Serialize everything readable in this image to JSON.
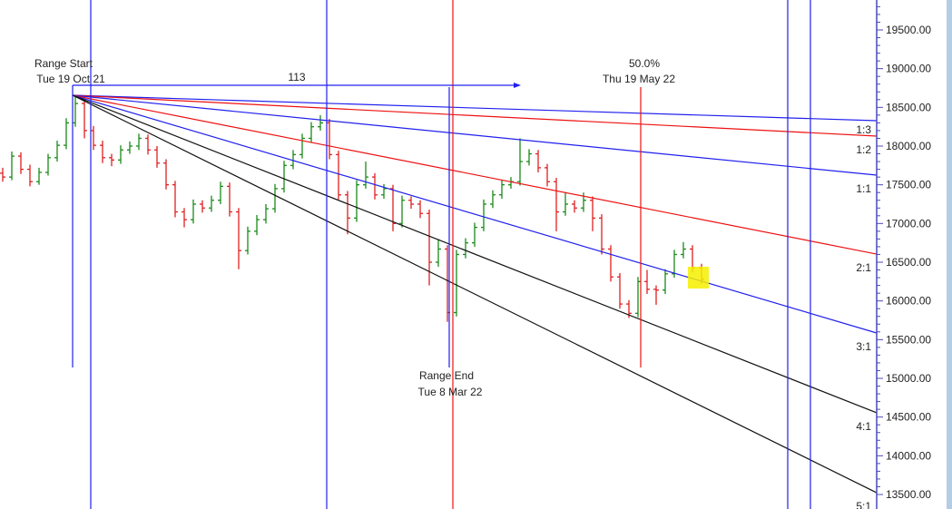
{
  "chart_data": {
    "type": "ohlc",
    "ylim": [
      13450,
      19900
    ],
    "y_ticks": [
      "19500.00",
      "19000.00",
      "18500.00",
      "18000.00",
      "17500.00",
      "17000.00",
      "16500.00",
      "16000.00",
      "15500.00",
      "15000.00",
      "14500.00",
      "14000.00",
      "13500.00"
    ],
    "y_tick_values": [
      19500,
      19000,
      18500,
      18000,
      17500,
      17000,
      16500,
      16000,
      15500,
      15000,
      14500,
      14000,
      13500
    ],
    "colors": {
      "up": "#1a8a1a",
      "down": "#e02020",
      "blue": "#2020ee",
      "red": "#ee1010",
      "black": "#111111",
      "highlight": "#f5f000"
    },
    "bars": [
      [
        17650,
        17720,
        17540,
        17600
      ],
      [
        17600,
        17930,
        17560,
        17870
      ],
      [
        17870,
        17920,
        17640,
        17700
      ],
      [
        17700,
        17760,
        17480,
        17540
      ],
      [
        17540,
        17720,
        17500,
        17660
      ],
      [
        17660,
        17900,
        17620,
        17850
      ],
      [
        17850,
        18070,
        17800,
        18010
      ],
      [
        18010,
        18360,
        17960,
        18300
      ],
      [
        18300,
        18660,
        18250,
        18550
      ],
      [
        18550,
        18600,
        18100,
        18200
      ],
      [
        18200,
        18260,
        17950,
        18010
      ],
      [
        18010,
        18070,
        17780,
        17850
      ],
      [
        17850,
        17900,
        17740,
        17820
      ],
      [
        17820,
        18010,
        17770,
        17950
      ],
      [
        17950,
        18060,
        17900,
        18000
      ],
      [
        18000,
        18160,
        17950,
        18100
      ],
      [
        18100,
        18150,
        17890,
        17950
      ],
      [
        17950,
        18000,
        17720,
        17780
      ],
      [
        17780,
        17830,
        17440,
        17500
      ],
      [
        17500,
        17550,
        17080,
        17150
      ],
      [
        17150,
        17200,
        16950,
        17050
      ],
      [
        17050,
        17310,
        17000,
        17250
      ],
      [
        17250,
        17300,
        17140,
        17200
      ],
      [
        17200,
        17360,
        17150,
        17300
      ],
      [
        17300,
        17540,
        17250,
        17480
      ],
      [
        17480,
        17530,
        17090,
        17150
      ],
      [
        17150,
        17200,
        16410,
        16650
      ],
      [
        16650,
        16960,
        16600,
        16900
      ],
      [
        16900,
        17110,
        16850,
        17050
      ],
      [
        17050,
        17250,
        17000,
        17190
      ],
      [
        17190,
        17510,
        17140,
        17450
      ],
      [
        17450,
        17810,
        17400,
        17750
      ],
      [
        17750,
        17950,
        17700,
        17890
      ],
      [
        17890,
        18160,
        17840,
        18100
      ],
      [
        18100,
        18310,
        18050,
        18250
      ],
      [
        18250,
        18400,
        18200,
        18300
      ],
      [
        18300,
        18350,
        17830,
        17890
      ],
      [
        17890,
        17940,
        17310,
        17370
      ],
      [
        17370,
        17420,
        16860,
        17070
      ],
      [
        17070,
        17560,
        17020,
        17500
      ],
      [
        17500,
        17800,
        17450,
        17600
      ],
      [
        17600,
        17650,
        17310,
        17370
      ],
      [
        17370,
        17510,
        17320,
        17450
      ],
      [
        17450,
        17500,
        16900,
        17000
      ],
      [
        17000,
        17360,
        16950,
        17300
      ],
      [
        17300,
        17350,
        17190,
        17250
      ],
      [
        17250,
        17300,
        17070,
        17130
      ],
      [
        17130,
        17180,
        16200,
        16500
      ],
      [
        16500,
        16800,
        16440,
        16670
      ],
      [
        16670,
        16720,
        15730,
        15850
      ],
      [
        15850,
        16660,
        15800,
        16600
      ],
      [
        16600,
        16810,
        16550,
        16750
      ],
      [
        16750,
        17010,
        16700,
        16950
      ],
      [
        16950,
        17310,
        16900,
        17250
      ],
      [
        17250,
        17430,
        17200,
        17370
      ],
      [
        17370,
        17560,
        17320,
        17500
      ],
      [
        17500,
        17600,
        17450,
        17540
      ],
      [
        17540,
        18100,
        17490,
        17800
      ],
      [
        17800,
        17960,
        17750,
        17900
      ],
      [
        17900,
        17950,
        17660,
        17720
      ],
      [
        17720,
        17770,
        17480,
        17540
      ],
      [
        17540,
        17590,
        16900,
        17150
      ],
      [
        17150,
        17400,
        17100,
        17250
      ],
      [
        17250,
        17300,
        17140,
        17200
      ],
      [
        17200,
        17400,
        17150,
        17300
      ],
      [
        17300,
        17350,
        16900,
        17070
      ],
      [
        17070,
        17120,
        16600,
        16670
      ],
      [
        16670,
        16720,
        16250,
        16310
      ],
      [
        16310,
        16360,
        15900,
        15960
      ],
      [
        15960,
        16010,
        15780,
        15840
      ],
      [
        15840,
        16310,
        15790,
        16250
      ],
      [
        16250,
        16400,
        16090,
        16150
      ],
      [
        16150,
        16200,
        15950,
        16140
      ],
      [
        16140,
        16410,
        16090,
        16350
      ],
      [
        16350,
        16660,
        16300,
        16600
      ],
      [
        16600,
        16760,
        16550,
        16670
      ],
      [
        16670,
        16720,
        16370,
        16430
      ],
      [
        16430,
        16480,
        16220,
        16280
      ]
    ],
    "gann_fan": {
      "origin_price": 18656,
      "lines": [
        {
          "label": "1:3",
          "end_price": 18328,
          "color": "blue"
        },
        {
          "label": "1:2",
          "end_price": 18129,
          "color": "red"
        },
        {
          "label": "1:1",
          "end_price": 17625,
          "color": "blue"
        },
        {
          "label": "2:1",
          "end_price": 16605,
          "color": "red"
        },
        {
          "label": "3:1",
          "end_price": 15586,
          "color": "blue"
        },
        {
          "label": "4:1",
          "end_price": 14555,
          "color": "black"
        },
        {
          "label": "5:1",
          "end_price": 13523,
          "color": "black"
        }
      ]
    },
    "annotations": {
      "range_start_title": "Range Start",
      "range_start_date": "Tue 19 Oct 21",
      "range_end_title": "Range End",
      "range_end_date": "Tue 8 Mar 22",
      "bar_count": "113",
      "midpoint_pct": "50.0%",
      "midpoint_date": "Thu 19 May 22"
    }
  }
}
